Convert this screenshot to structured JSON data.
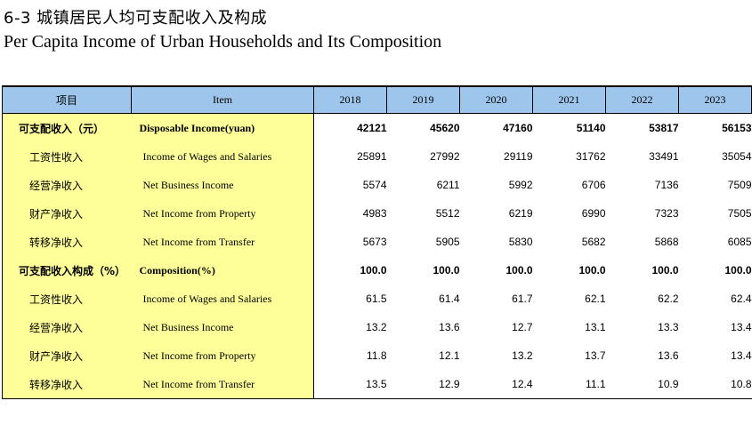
{
  "title_zh": "6-3  城镇居民人均可支配收入及构成",
  "title_en": "Per Capita Income of Urban Households and Its Composition",
  "headers": {
    "item_zh": "项目",
    "item_en": "Item",
    "years": [
      "2018",
      "2019",
      "2020",
      "2021",
      "2022",
      "2023"
    ]
  },
  "rows": [
    {
      "zh": "可支配收入（元）",
      "en": "Disposable Income(yuan)",
      "values": [
        "42121",
        "45620",
        "47160",
        "51140",
        "53817",
        "56153"
      ]
    },
    {
      "zh": "工资性收入",
      "en": "Income of Wages and Salaries",
      "values": [
        "25891",
        "27992",
        "29119",
        "31762",
        "33491",
        "35054"
      ]
    },
    {
      "zh": "经营净收入",
      "en": "Net Business Income",
      "values": [
        "5574",
        "6211",
        "5992",
        "6706",
        "7136",
        "7509"
      ]
    },
    {
      "zh": "财产净收入",
      "en": "Net Income from  Property",
      "values": [
        "4983",
        "5512",
        "6219",
        "6990",
        "7323",
        "7505"
      ]
    },
    {
      "zh": "转移净收入",
      "en": "Net Income from Transfer",
      "values": [
        "5673",
        "5905",
        "5830",
        "5682",
        "5868",
        "6085"
      ]
    },
    {
      "zh": "可支配收入构成（%）",
      "en": "Composition(%)",
      "values": [
        "100.0",
        "100.0",
        "100.0",
        "100.0",
        "100.0",
        "100.0"
      ]
    },
    {
      "zh": "工资性收入",
      "en": "Income of Wages and Salaries",
      "values": [
        "61.5",
        "61.4",
        "61.7",
        "62.1",
        "62.2",
        "62.4"
      ]
    },
    {
      "zh": "经营净收入",
      "en": "Net Business Income",
      "values": [
        "13.2",
        "13.6",
        "12.7",
        "13.1",
        "13.3",
        "13.4"
      ]
    },
    {
      "zh": "财产净收入",
      "en": "Net Income from  Property",
      "values": [
        "11.8",
        "12.1",
        "13.2",
        "13.7",
        "13.6",
        "13.4"
      ]
    },
    {
      "zh": "转移净收入",
      "en": "Net Income from Transfer",
      "values": [
        "13.5",
        "12.9",
        "12.4",
        "11.1",
        "10.9",
        "10.8"
      ]
    }
  ],
  "colors": {
    "header_bg": "#9ec6ec",
    "item_bg": "#ffff99"
  }
}
